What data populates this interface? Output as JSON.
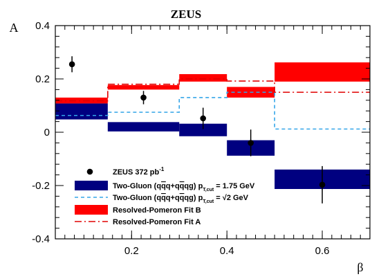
{
  "chart_data": {
    "type": "scatter",
    "title": "ZEUS",
    "xlabel": "β",
    "ylabel": "A",
    "xlim": [
      0.04,
      0.7
    ],
    "ylim": [
      -0.4,
      0.4
    ],
    "x_ticks": [
      0.2,
      0.4,
      0.6
    ],
    "x_tick_labels": [
      "0.2",
      "0.4",
      "0.6"
    ],
    "y_ticks": [
      -0.4,
      -0.2,
      0,
      0.2,
      0.4
    ],
    "y_tick_labels": [
      "-0.4",
      "-0.2",
      "0",
      "0.2",
      "0.4"
    ],
    "grid": false,
    "legend_position": "bottom-left",
    "colors": {
      "data": "#000000",
      "two_gluon_175": "#000080",
      "two_gluon_sqrt2": "#33a5e8",
      "resolved_b": "#ff0000",
      "resolved_a": "#e00000"
    },
    "series": [
      {
        "name": "ZEUS 372 pb-1",
        "style": "points-with-errors",
        "x": [
          0.075,
          0.225,
          0.35,
          0.45,
          0.6
        ],
        "y": [
          0.255,
          0.13,
          0.052,
          -0.04,
          -0.197
        ],
        "err": [
          0.03,
          0.025,
          0.04,
          0.05,
          0.07
        ]
      },
      {
        "name": "Two-Gluon (qq̄+qq̄g) pT,cut = 1.75 GeV",
        "style": "bands",
        "bins": [
          [
            0.04,
            0.15
          ],
          [
            0.15,
            0.3
          ],
          [
            0.3,
            0.4
          ],
          [
            0.4,
            0.5
          ],
          [
            0.5,
            0.7
          ]
        ],
        "low": [
          0.048,
          0.003,
          -0.015,
          -0.088,
          -0.213
        ],
        "high": [
          0.108,
          0.038,
          0.032,
          -0.03,
          -0.14
        ]
      },
      {
        "name": "Two-Gluon (qq̄+qq̄g) pT,cut = √2 GeV",
        "style": "dashed-steps",
        "bins": [
          [
            0.04,
            0.15
          ],
          [
            0.15,
            0.3
          ],
          [
            0.3,
            0.4
          ],
          [
            0.4,
            0.5
          ],
          [
            0.5,
            0.7
          ]
        ],
        "values": [
          0.063,
          0.075,
          0.13,
          0.15,
          0.012
        ]
      },
      {
        "name": "Resolved-Pomeron Fit B",
        "style": "bands",
        "bins": [
          [
            0.04,
            0.15
          ],
          [
            0.15,
            0.3
          ],
          [
            0.3,
            0.4
          ],
          [
            0.4,
            0.5
          ],
          [
            0.5,
            0.7
          ]
        ],
        "low": [
          0.108,
          0.16,
          0.19,
          0.13,
          0.19
        ],
        "high": [
          0.13,
          0.177,
          0.218,
          0.17,
          0.262
        ]
      },
      {
        "name": "Resolved-Pomeron Fit A",
        "style": "dashdot-steps",
        "bins": [
          [
            0.04,
            0.15
          ],
          [
            0.15,
            0.3
          ],
          [
            0.3,
            0.4
          ],
          [
            0.4,
            0.5
          ],
          [
            0.5,
            0.7
          ]
        ],
        "values": [
          0.118,
          0.18,
          0.2,
          0.192,
          0.15
        ]
      }
    ],
    "legend": [
      {
        "label": "ZEUS 372 pb",
        "sup": "-1",
        "key": "data"
      },
      {
        "label_main": "Two-Gluon (q",
        "label_rest": "q+q",
        "label_rest2": "qg) p",
        "sub": "T,cut",
        "value": " = 1.75 GeV",
        "key": "two_gluon_175"
      },
      {
        "label_main": "Two-Gluon (q",
        "label_rest": "q+q",
        "label_rest2": "qg) p",
        "sub": "T,cut",
        "value": " = √2 GeV",
        "key": "two_gluon_sqrt2"
      },
      {
        "label": "Resolved-Pomeron Fit B",
        "key": "resolved_b"
      },
      {
        "label": "Resolved-Pomeron Fit A",
        "key": "resolved_a"
      }
    ]
  }
}
